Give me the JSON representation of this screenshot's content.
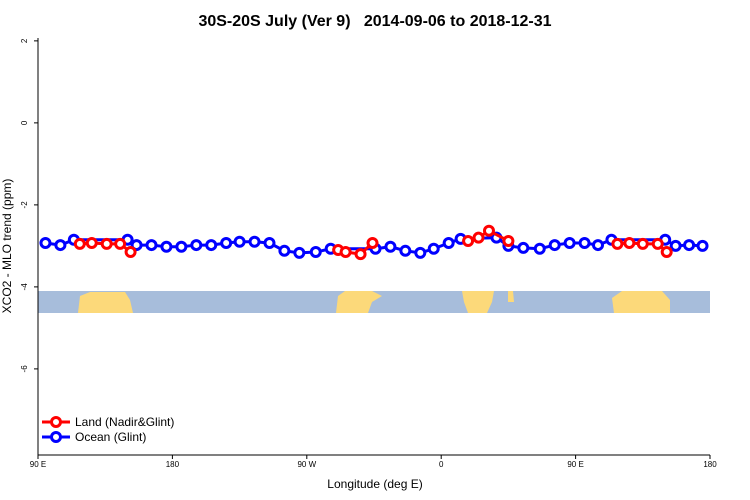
{
  "chart_data": {
    "type": "line",
    "title": "30S-20S July (Ver 9)   2014-09-06 to 2018-12-31",
    "x_label": "Longitude (deg E)",
    "y_label": "XCO2 - MLO trend (ppm)",
    "xlim": [
      90,
      540
    ],
    "xticks": [
      {
        "value": 90,
        "label": "90 E"
      },
      180,
      {
        "value": 270,
        "label": "90 W"
      },
      {
        "value": 360,
        "label": "0"
      },
      {
        "value": 450,
        "label": "90 E"
      },
      {
        "value": 540,
        "label": "180"
      }
    ],
    "ylim": [
      -8.1,
      2.07
    ],
    "yticks": [
      -6,
      -4,
      -2,
      0,
      2
    ],
    "legend": "bottom-left",
    "series": [
      {
        "name": "Ocean (Glint)",
        "color": "#0000ff",
        "x": [
          95,
          105,
          114,
          150,
          156,
          166,
          176,
          186,
          196,
          206,
          216,
          225,
          235,
          245,
          255,
          265,
          276,
          286,
          316,
          326,
          336,
          346,
          355,
          365,
          373,
          397,
          405,
          415,
          426,
          436,
          446,
          456,
          465,
          474,
          510,
          517,
          526,
          535
        ],
        "values": [
          -2.93,
          -2.98,
          -2.85,
          -2.85,
          -2.98,
          -2.98,
          -3.02,
          -3.02,
          -2.98,
          -2.98,
          -2.93,
          -2.9,
          -2.9,
          -2.93,
          -3.12,
          -3.17,
          -3.15,
          -3.07,
          -3.07,
          -3.02,
          -3.12,
          -3.17,
          -3.07,
          -2.93,
          -2.83,
          -2.8,
          -3.0,
          -3.05,
          -3.07,
          -2.98,
          -2.93,
          -2.93,
          -2.98,
          -2.85,
          -2.85,
          -3.0,
          -2.98,
          -3.0
        ]
      },
      {
        "name": "Land (Nadir&Glint)",
        "color": "#ff0000",
        "x": [
          118,
          126,
          136,
          145,
          152,
          null,
          291,
          296,
          306,
          314,
          null,
          378,
          385,
          392,
          405,
          null,
          478,
          486,
          495,
          505,
          511
        ],
        "values": [
          -2.95,
          -2.93,
          -2.95,
          -2.95,
          -3.15,
          null,
          -3.1,
          -3.15,
          -3.2,
          -2.93,
          null,
          -2.88,
          -2.8,
          -2.63,
          -2.88,
          null,
          -2.95,
          -2.93,
          -2.95,
          -2.95,
          -3.15
        ]
      }
    ]
  }
}
